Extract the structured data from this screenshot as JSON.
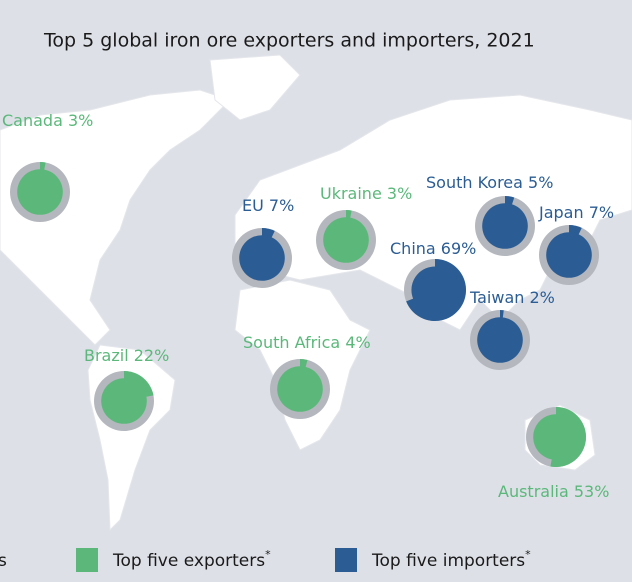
{
  "title": "Top 5 global iron ore exporters and importers, 2021",
  "markers": [
    {
      "name": "Canada",
      "value": 3,
      "value_label": "3%",
      "group": "exporter"
    },
    {
      "name": "EU",
      "value": 7,
      "value_label": "7%",
      "group": "importer"
    },
    {
      "name": "Ukraine",
      "value": 3,
      "value_label": "3%",
      "group": "exporter"
    },
    {
      "name": "South Korea",
      "value": 5,
      "value_label": "5%",
      "group": "importer"
    },
    {
      "name": "Japan",
      "value": 7,
      "value_label": "7%",
      "group": "importer"
    },
    {
      "name": "China",
      "value": 69,
      "value_label": "69%",
      "group": "importer"
    },
    {
      "name": "Taiwan",
      "value": 2,
      "value_label": "2%",
      "group": "importer"
    },
    {
      "name": "Brazil",
      "value": 22,
      "value_label": "22%",
      "group": "exporter"
    },
    {
      "name": "South Africa",
      "value": 4,
      "value_label": "4%",
      "group": "exporter"
    },
    {
      "name": "Australia",
      "value": 53,
      "value_label": "53%",
      "group": "exporter"
    }
  ],
  "legend": {
    "cut_text": "s",
    "items": [
      {
        "label": "Top five exporters",
        "mark": "*",
        "color": "#5bb87a"
      },
      {
        "label": "Top five importers",
        "mark": "*",
        "color": "#2b5d94"
      }
    ]
  }
}
